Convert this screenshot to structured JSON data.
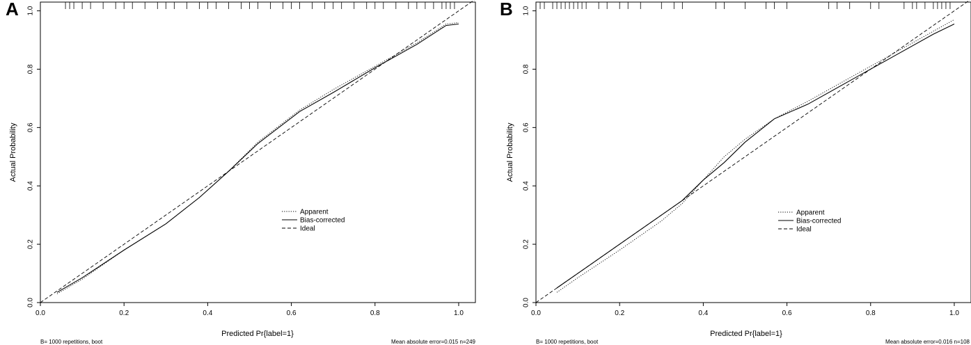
{
  "chart_data": [
    {
      "panel_label": "A",
      "type": "line",
      "xlabel": "Predicted Pr{label=1}",
      "ylabel": "Actual Probability",
      "xlim": [
        0,
        1.04
      ],
      "ylim": [
        0,
        1.03
      ],
      "x_ticks": [
        "0.0",
        "0.2",
        "0.4",
        "0.6",
        "0.8",
        "1.0"
      ],
      "y_ticks": [
        "0.0",
        "0.2",
        "0.4",
        "0.6",
        "0.8",
        "1.0"
      ],
      "legend": [
        "Apparent",
        "Bias-corrected",
        "Ideal"
      ],
      "legend_position": "center-right",
      "footnote_left": "B= 1000 repetitions, boot",
      "footnote_right": "Mean absolute error=0.015 n=249",
      "series": [
        {
          "name": "Apparent",
          "style": "dotted",
          "x": [
            0.04,
            0.1,
            0.2,
            0.3,
            0.38,
            0.45,
            0.52,
            0.62,
            0.7,
            0.8,
            0.9,
            0.97,
            1.0
          ],
          "y": [
            0.03,
            0.08,
            0.18,
            0.27,
            0.36,
            0.45,
            0.55,
            0.66,
            0.73,
            0.81,
            0.89,
            0.955,
            0.96
          ]
        },
        {
          "name": "Bias-corrected",
          "style": "solid",
          "x": [
            0.04,
            0.1,
            0.2,
            0.3,
            0.38,
            0.45,
            0.52,
            0.62,
            0.7,
            0.8,
            0.9,
            0.97,
            1.0
          ],
          "y": [
            0.035,
            0.085,
            0.18,
            0.27,
            0.36,
            0.45,
            0.545,
            0.655,
            0.72,
            0.805,
            0.885,
            0.95,
            0.955
          ]
        },
        {
          "name": "Ideal",
          "style": "dashed",
          "x": [
            0.0,
            1.04
          ],
          "y": [
            0.0,
            1.04
          ]
        }
      ],
      "rug": [
        0.06,
        0.07,
        0.08,
        0.1,
        0.12,
        0.15,
        0.18,
        0.2,
        0.22,
        0.25,
        0.28,
        0.3,
        0.32,
        0.35,
        0.38,
        0.4,
        0.42,
        0.45,
        0.48,
        0.5,
        0.52,
        0.55,
        0.58,
        0.6,
        0.62,
        0.65,
        0.68,
        0.7,
        0.72,
        0.75,
        0.78,
        0.8,
        0.82,
        0.85,
        0.88,
        0.9,
        0.92,
        0.94,
        0.96,
        0.97,
        0.98,
        0.99
      ]
    },
    {
      "panel_label": "B",
      "type": "line",
      "xlabel": "Predicted Pr{label=1}",
      "ylabel": "Actual Probability",
      "xlim": [
        0,
        1.04
      ],
      "ylim": [
        0,
        1.03
      ],
      "x_ticks": [
        "0.0",
        "0.2",
        "0.4",
        "0.6",
        "0.8",
        "1.0"
      ],
      "y_ticks": [
        "0.0",
        "0.2",
        "0.4",
        "0.6",
        "0.8",
        "1.0"
      ],
      "legend": [
        "Apparent",
        "Bias-corrected",
        "Ideal"
      ],
      "legend_position": "center-right",
      "footnote_left": "B= 1000 repetitions, boot",
      "footnote_right": "Mean absolute error=0.016 n=108",
      "series": [
        {
          "name": "Apparent",
          "style": "dotted",
          "x": [
            0.05,
            0.1,
            0.2,
            0.3,
            0.35,
            0.4,
            0.45,
            0.5,
            0.57,
            0.65,
            0.75,
            0.85,
            0.95,
            1.0
          ],
          "y": [
            0.035,
            0.085,
            0.18,
            0.28,
            0.34,
            0.42,
            0.5,
            0.56,
            0.63,
            0.69,
            0.77,
            0.85,
            0.93,
            0.97
          ]
        },
        {
          "name": "Bias-corrected",
          "style": "solid",
          "x": [
            0.05,
            0.1,
            0.2,
            0.3,
            0.35,
            0.4,
            0.45,
            0.5,
            0.57,
            0.65,
            0.75,
            0.85,
            0.95,
            1.0
          ],
          "y": [
            0.05,
            0.1,
            0.2,
            0.3,
            0.35,
            0.42,
            0.48,
            0.55,
            0.63,
            0.68,
            0.76,
            0.84,
            0.92,
            0.955
          ]
        },
        {
          "name": "Ideal",
          "style": "dashed",
          "x": [
            0.0,
            1.04
          ],
          "y": [
            0.0,
            1.04
          ]
        }
      ],
      "rug": [
        0.01,
        0.02,
        0.04,
        0.05,
        0.06,
        0.07,
        0.08,
        0.09,
        0.1,
        0.11,
        0.12,
        0.15,
        0.17,
        0.2,
        0.22,
        0.25,
        0.3,
        0.33,
        0.35,
        0.43,
        0.45,
        0.5,
        0.55,
        0.57,
        0.6,
        0.7,
        0.72,
        0.75,
        0.8,
        0.82,
        0.88,
        0.9,
        0.91,
        0.93,
        0.95,
        0.96,
        0.97,
        0.98,
        0.99
      ]
    }
  ]
}
